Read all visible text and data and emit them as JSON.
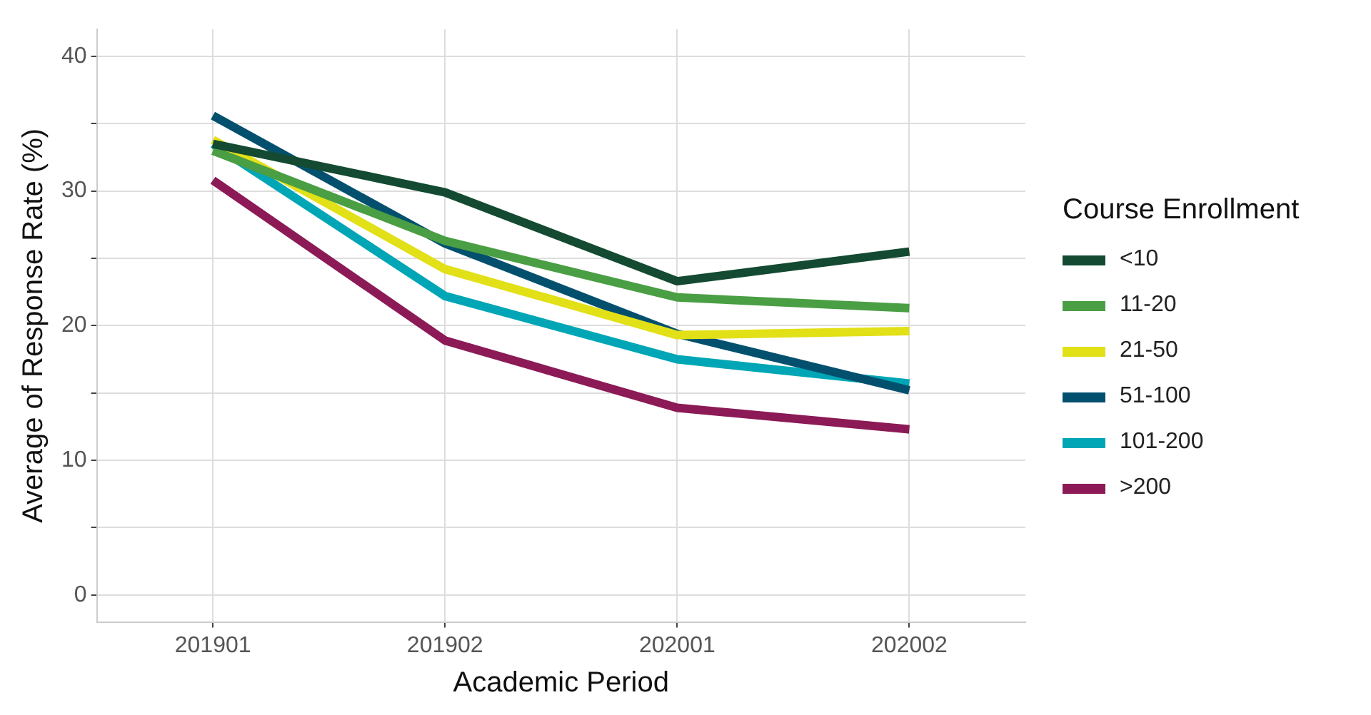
{
  "chart_data": {
    "type": "line",
    "xlabel": "Academic Period",
    "ylabel": "Average of Response Rate (%)",
    "legend_title": "Course Enrollment",
    "legend": "right",
    "grid": true,
    "line_style": "solid",
    "marker": "none",
    "categories": [
      "201901",
      "201902",
      "202001",
      "202002"
    ],
    "ylim": [
      -2,
      42
    ],
    "yticks": [
      0,
      {
        "value": 5,
        "label": null
      },
      10,
      {
        "value": 15,
        "label": null
      },
      20,
      {
        "value": 25,
        "label": null
      },
      30,
      {
        "value": 35,
        "label": null
      },
      40
    ],
    "series": [
      {
        "name": "<10",
        "color": "#134a31",
        "values": [
          33.5,
          29.9,
          23.3,
          25.5
        ]
      },
      {
        "name": "11-20",
        "color": "#4a9e44",
        "values": [
          33.0,
          26.3,
          22.1,
          21.3
        ]
      },
      {
        "name": "21-50",
        "color": "#e2e016",
        "values": [
          33.8,
          24.2,
          19.3,
          19.6
        ]
      },
      {
        "name": "51-100",
        "color": "#03506e",
        "values": [
          35.6,
          26.1,
          19.4,
          15.2
        ]
      },
      {
        "name": "101-200",
        "color": "#00a6b5",
        "values": [
          33.5,
          22.2,
          17.5,
          15.7
        ]
      },
      {
        "name": ">200",
        "color": "#8b1a56",
        "values": [
          30.8,
          18.9,
          13.9,
          12.3
        ]
      }
    ]
  }
}
